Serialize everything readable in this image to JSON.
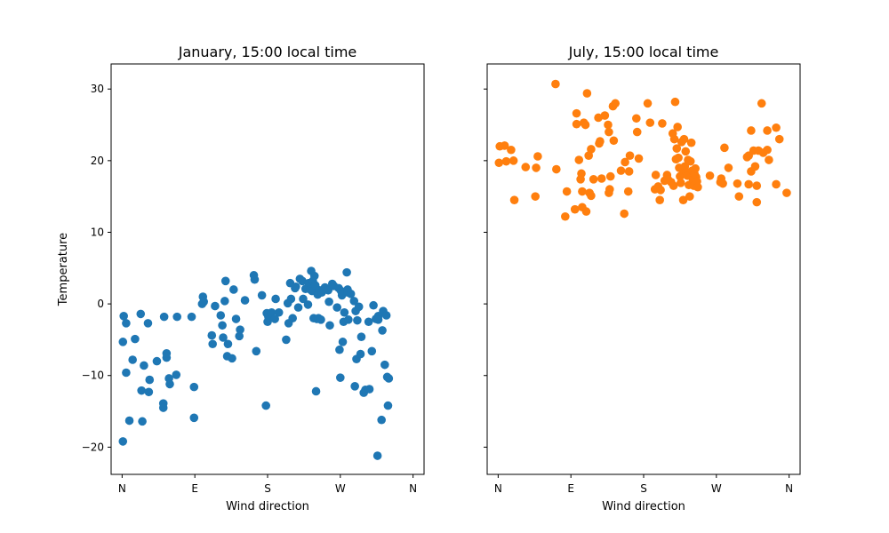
{
  "chart_data": [
    {
      "type": "scatter",
      "title": "January, 15:00 local time",
      "xlabel": "Wind direction",
      "ylabel": "Temperature",
      "xlim": [
        -13.6,
        373.6
      ],
      "ylim": [
        -23.8,
        33.5
      ],
      "x_ticks": [
        0,
        90,
        180,
        270,
        360
      ],
      "x_tick_labels": [
        "N",
        "E",
        "S",
        "W",
        "N"
      ],
      "y_ticks": [
        -20,
        -10,
        0,
        10,
        20,
        30
      ],
      "y_tick_labels": [
        "−20",
        "−10",
        "0",
        "10",
        "20",
        "30"
      ],
      "grid": false,
      "color": "#1f77b4",
      "points": [
        [
          1,
          -19.2
        ],
        [
          1,
          -5.3
        ],
        [
          2,
          -1.7
        ],
        [
          5,
          -2.7
        ],
        [
          5,
          -9.6
        ],
        [
          9,
          -16.3
        ],
        [
          13,
          -7.8
        ],
        [
          16,
          -4.9
        ],
        [
          23,
          -1.4
        ],
        [
          24,
          -12.1
        ],
        [
          25,
          -16.4
        ],
        [
          27,
          -8.6
        ],
        [
          32,
          -2.7
        ],
        [
          33,
          -12.3
        ],
        [
          34,
          -10.6
        ],
        [
          43,
          -8.0
        ],
        [
          51,
          -13.9
        ],
        [
          51,
          -14.5
        ],
        [
          52,
          -1.8
        ],
        [
          55,
          -7.5
        ],
        [
          55,
          -6.9
        ],
        [
          58,
          -10.4
        ],
        [
          59,
          -11.2
        ],
        [
          67,
          -9.9
        ],
        [
          68,
          -1.8
        ],
        [
          86,
          -1.8
        ],
        [
          89,
          -15.9
        ],
        [
          89,
          -11.6
        ],
        [
          99,
          0.0
        ],
        [
          100,
          1.0
        ],
        [
          101,
          0.3
        ],
        [
          111,
          -4.4
        ],
        [
          112,
          -5.6
        ],
        [
          115,
          -0.3
        ],
        [
          122,
          -1.6
        ],
        [
          124,
          -3.0
        ],
        [
          125,
          -4.7
        ],
        [
          127,
          0.4
        ],
        [
          128,
          3.2
        ],
        [
          130,
          -7.3
        ],
        [
          131,
          -5.6
        ],
        [
          136,
          -7.6
        ],
        [
          138,
          2.0
        ],
        [
          141,
          -2.1
        ],
        [
          145,
          -4.5
        ],
        [
          146,
          -3.6
        ],
        [
          152,
          0.5
        ],
        [
          163,
          4.0
        ],
        [
          164,
          3.4
        ],
        [
          166,
          -6.6
        ],
        [
          173,
          1.2
        ],
        [
          178,
          -14.2
        ],
        [
          179,
          -1.3
        ],
        [
          180,
          -2.5
        ],
        [
          181,
          -1.8
        ],
        [
          185,
          -1.2
        ],
        [
          189,
          -2.1
        ],
        [
          190,
          0.7
        ],
        [
          194,
          -1.2
        ],
        [
          203,
          -5.0
        ],
        [
          205,
          0.1
        ],
        [
          206,
          -2.7
        ],
        [
          208,
          2.9
        ],
        [
          209,
          0.7
        ],
        [
          211,
          -2.0
        ],
        [
          214,
          2.2
        ],
        [
          215,
          2.4
        ],
        [
          218,
          -0.5
        ],
        [
          220,
          3.5
        ],
        [
          223,
          3.2
        ],
        [
          224,
          0.7
        ],
        [
          227,
          2.1
        ],
        [
          230,
          -0.1
        ],
        [
          231,
          2.9
        ],
        [
          233,
          2.0
        ],
        [
          234,
          4.6
        ],
        [
          235,
          1.8
        ],
        [
          236,
          3.2
        ],
        [
          237,
          -2.0
        ],
        [
          238,
          3.9
        ],
        [
          239,
          2.6
        ],
        [
          240,
          -12.2
        ],
        [
          241,
          -2.1
        ],
        [
          242,
          1.3
        ],
        [
          243,
          -2.0
        ],
        [
          244,
          1.9
        ],
        [
          246,
          -2.2
        ],
        [
          247,
          1.6
        ],
        [
          249,
          2.0
        ],
        [
          251,
          2.3
        ],
        [
          255,
          1.9
        ],
        [
          256,
          0.3
        ],
        [
          257,
          -3.0
        ],
        [
          260,
          2.8
        ],
        [
          262,
          2.5
        ],
        [
          266,
          -0.5
        ],
        [
          268,
          2.2
        ],
        [
          269,
          -6.4
        ],
        [
          270,
          -10.3
        ],
        [
          271,
          1.8
        ],
        [
          272,
          1.2
        ],
        [
          273,
          -5.3
        ],
        [
          274,
          -2.5
        ],
        [
          275,
          -1.2
        ],
        [
          278,
          4.4
        ],
        [
          279,
          2.0
        ],
        [
          279,
          1.6
        ],
        [
          280,
          -2.2
        ],
        [
          283,
          1.4
        ],
        [
          287,
          0.4
        ],
        [
          288,
          -11.5
        ],
        [
          289,
          -1.0
        ],
        [
          290,
          -7.7
        ],
        [
          291,
          -2.3
        ],
        [
          293,
          -0.4
        ],
        [
          295,
          -7.0
        ],
        [
          296,
          -4.6
        ],
        [
          299,
          -12.4
        ],
        [
          301,
          -12.0
        ],
        [
          305,
          -2.5
        ],
        [
          306,
          -11.9
        ],
        [
          309,
          -6.6
        ],
        [
          311,
          -0.2
        ],
        [
          314,
          -2.1
        ],
        [
          316,
          -21.2
        ],
        [
          317,
          -1.7
        ],
        [
          317,
          -2.2
        ],
        [
          321,
          -16.2
        ],
        [
          322,
          -3.7
        ],
        [
          323,
          -1.0
        ],
        [
          325,
          -8.5
        ],
        [
          327,
          -1.6
        ],
        [
          328,
          -10.2
        ],
        [
          329,
          -14.2
        ],
        [
          330,
          -10.4
        ]
      ]
    },
    {
      "type": "scatter",
      "title": "July, 15:00 local time",
      "xlabel": "Wind direction",
      "ylabel": "",
      "xlim": [
        -13.6,
        373.6
      ],
      "ylim": [
        -23.8,
        33.5
      ],
      "x_ticks": [
        0,
        90,
        180,
        270,
        360
      ],
      "x_tick_labels": [
        "N",
        "E",
        "S",
        "W",
        "N"
      ],
      "y_ticks": [
        -20,
        -10,
        0,
        10,
        20,
        30
      ],
      "y_tick_labels": [],
      "grid": false,
      "color": "#ff7f0e",
      "points": [
        [
          1,
          19.7
        ],
        [
          2,
          22.0
        ],
        [
          8,
          22.1
        ],
        [
          10,
          19.9
        ],
        [
          16,
          21.5
        ],
        [
          20,
          14.5
        ],
        [
          19,
          20.0
        ],
        [
          34,
          19.1
        ],
        [
          46,
          15.0
        ],
        [
          47,
          19.0
        ],
        [
          49,
          20.6
        ],
        [
          71,
          30.7
        ],
        [
          72,
          18.8
        ],
        [
          83,
          12.2
        ],
        [
          85,
          15.7
        ],
        [
          95,
          13.2
        ],
        [
          97,
          26.6
        ],
        [
          97,
          25.1
        ],
        [
          100,
          20.1
        ],
        [
          102,
          17.4
        ],
        [
          103,
          18.2
        ],
        [
          104,
          15.7
        ],
        [
          104,
          13.5
        ],
        [
          106,
          25.3
        ],
        [
          108,
          25.0
        ],
        [
          109,
          12.9
        ],
        [
          110,
          29.4
        ],
        [
          112,
          20.7
        ],
        [
          113,
          15.5
        ],
        [
          115,
          15.1
        ],
        [
          115,
          21.6
        ],
        [
          118,
          17.4
        ],
        [
          124,
          26.0
        ],
        [
          125,
          22.4
        ],
        [
          126,
          22.7
        ],
        [
          128,
          17.5
        ],
        [
          132,
          26.3
        ],
        [
          136,
          25.0
        ],
        [
          137,
          15.5
        ],
        [
          137,
          24.0
        ],
        [
          138,
          16.0
        ],
        [
          139,
          17.8
        ],
        [
          142,
          27.6
        ],
        [
          143,
          22.8
        ],
        [
          145,
          28.0
        ],
        [
          152,
          18.6
        ],
        [
          156,
          12.6
        ],
        [
          157,
          19.8
        ],
        [
          161,
          15.7
        ],
        [
          162,
          18.5
        ],
        [
          163,
          20.7
        ],
        [
          171,
          25.9
        ],
        [
          172,
          24.0
        ],
        [
          174,
          20.3
        ],
        [
          185,
          28.0
        ],
        [
          188,
          25.3
        ],
        [
          194,
          16.0
        ],
        [
          195,
          18.0
        ],
        [
          198,
          16.4
        ],
        [
          200,
          14.5
        ],
        [
          201,
          15.9
        ],
        [
          203,
          25.2
        ],
        [
          206,
          17.2
        ],
        [
          209,
          18.0
        ],
        [
          210,
          17.4
        ],
        [
          214,
          17.0
        ],
        [
          216,
          23.8
        ],
        [
          217,
          16.5
        ],
        [
          218,
          23.0
        ],
        [
          219,
          28.2
        ],
        [
          220,
          20.2
        ],
        [
          221,
          21.7
        ],
        [
          222,
          24.7
        ],
        [
          223,
          20.4
        ],
        [
          224,
          19.0
        ],
        [
          225,
          17.8
        ],
        [
          226,
          16.9
        ],
        [
          227,
          22.6
        ],
        [
          228,
          18.8
        ],
        [
          229,
          14.5
        ],
        [
          230,
          23.0
        ],
        [
          231,
          19.2
        ],
        [
          232,
          21.3
        ],
        [
          233,
          18.4
        ],
        [
          234,
          17.9
        ],
        [
          235,
          20.1
        ],
        [
          236,
          16.6
        ],
        [
          237,
          15.0
        ],
        [
          238,
          19.9
        ],
        [
          239,
          22.5
        ],
        [
          240,
          18.6
        ],
        [
          241,
          17.3
        ],
        [
          242,
          16.5
        ],
        [
          243,
          18.1
        ],
        [
          244,
          18.9
        ],
        [
          245,
          17.7
        ],
        [
          246,
          17.1
        ],
        [
          247,
          16.3
        ],
        [
          262,
          17.9
        ],
        [
          275,
          17.0
        ],
        [
          276,
          17.5
        ],
        [
          278,
          16.8
        ],
        [
          280,
          21.8
        ],
        [
          285,
          19.0
        ],
        [
          296,
          16.8
        ],
        [
          298,
          15.0
        ],
        [
          308,
          20.5
        ],
        [
          310,
          16.7
        ],
        [
          310,
          20.7
        ],
        [
          313,
          24.2
        ],
        [
          313,
          18.5
        ],
        [
          316,
          21.4
        ],
        [
          318,
          19.2
        ],
        [
          320,
          14.2
        ],
        [
          320,
          16.5
        ],
        [
          322,
          21.4
        ],
        [
          326,
          28.0
        ],
        [
          328,
          21.1
        ],
        [
          333,
          24.2
        ],
        [
          333,
          21.5
        ],
        [
          335,
          20.1
        ],
        [
          344,
          24.6
        ],
        [
          344,
          16.7
        ],
        [
          348,
          23.0
        ],
        [
          357,
          15.5
        ]
      ]
    }
  ]
}
